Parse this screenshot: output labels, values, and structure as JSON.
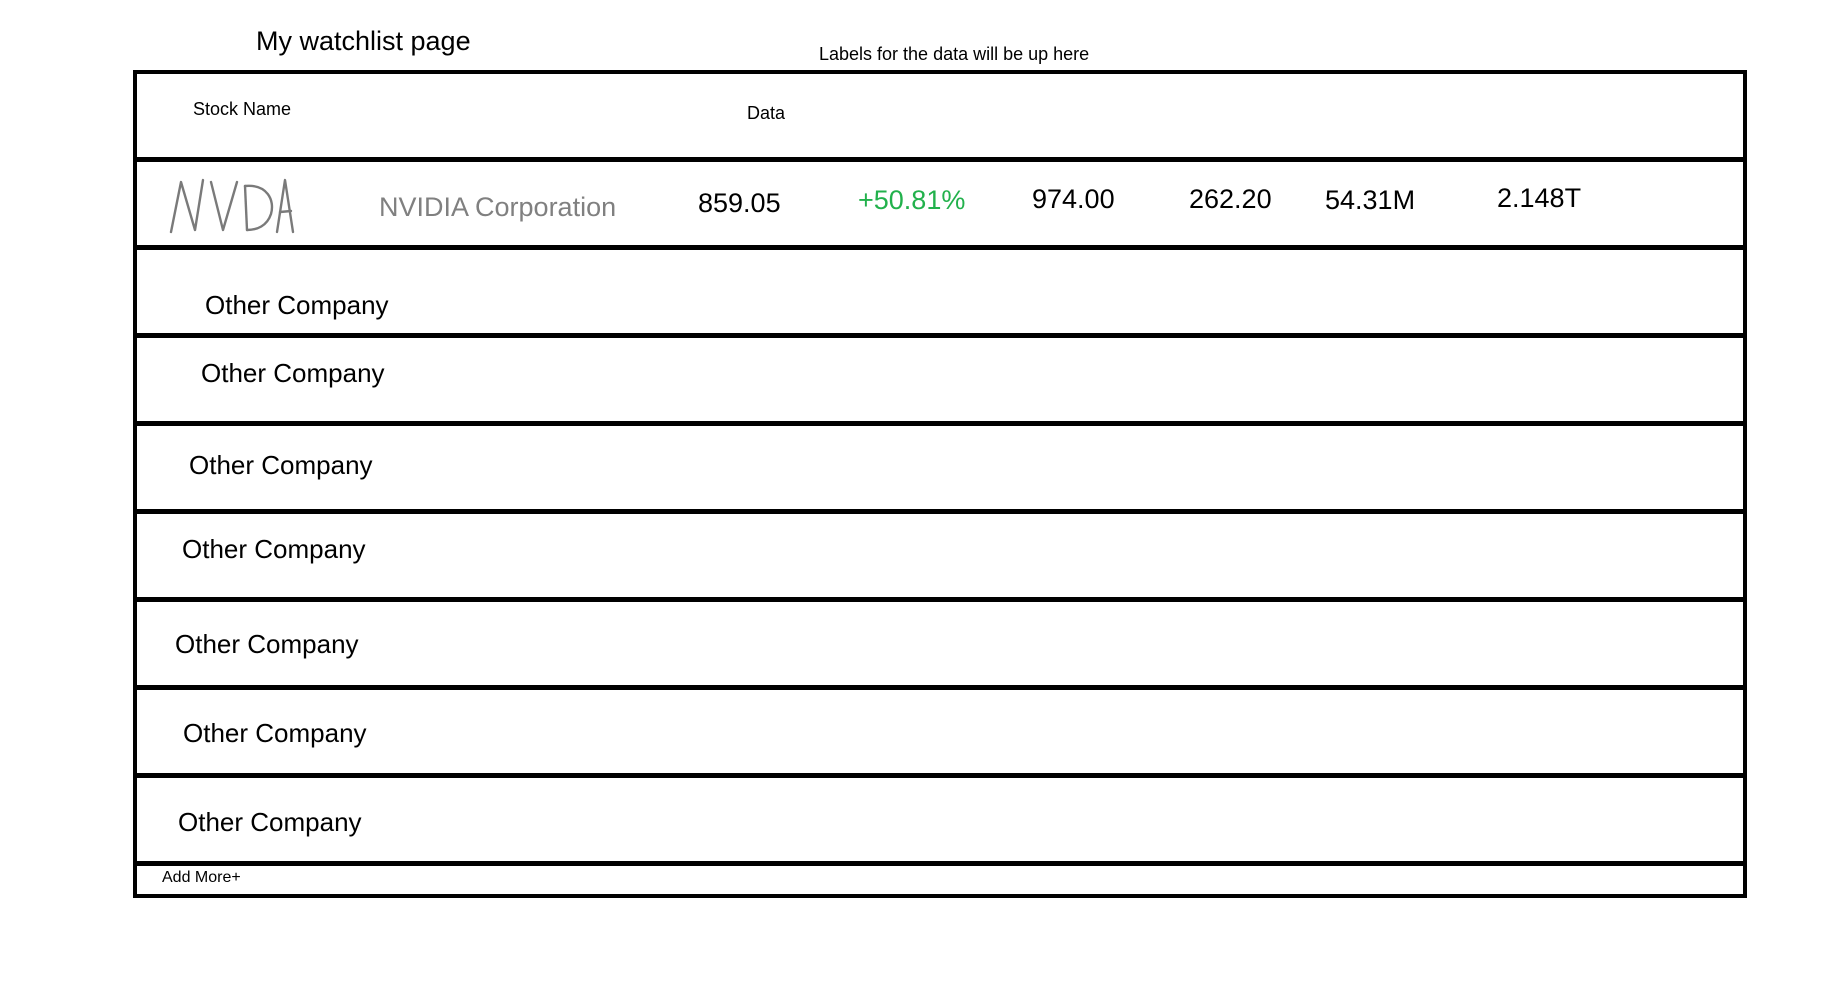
{
  "page": {
    "title": "My watchlist page",
    "labels_note": "Labels for the data will be up here"
  },
  "columns": {
    "stock_name": "Stock Name",
    "data": "Data"
  },
  "featured": {
    "ticker": "NVDA",
    "company": "NVIDIA Corporation",
    "price": "859.05",
    "change": "+50.81%",
    "high": "974.00",
    "low": "262.20",
    "volume": "54.31M",
    "market_cap": "2.148T",
    "colors": {
      "company": "#808080",
      "positive": "#22b14c",
      "logo_stroke": "#7a7a7a"
    }
  },
  "other_rows": [
    "Other Company",
    "Other Company",
    "Other Company",
    "Other Company",
    "Other Company",
    "Other Company",
    "Other Company"
  ],
  "footer": {
    "add_more": "Add More+"
  }
}
